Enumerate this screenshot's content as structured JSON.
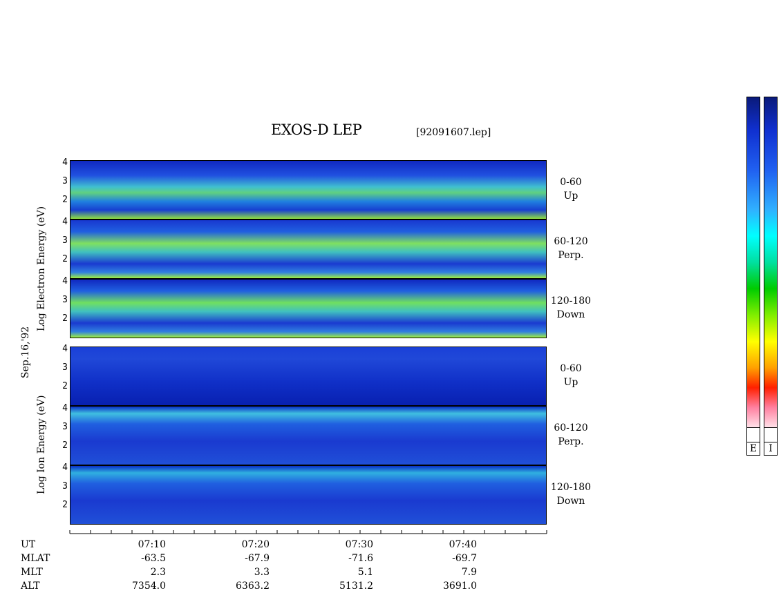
{
  "title": "EXOS-D LEP",
  "file": "[92091607.lep]",
  "ylabels": {
    "electron": "Log  Electron  Energy (eV)",
    "ion": "Log  Ion  Energy (eV)",
    "date": "Sep.16,'92"
  },
  "chart_data": {
    "type": "heatmap",
    "title": "EXOS-D LEP",
    "y_ticks": [
      "4",
      "3",
      "2"
    ],
    "panels": [
      {
        "species": "Electron",
        "pitch": "0-60",
        "dir": "Up"
      },
      {
        "species": "Electron",
        "pitch": "60-120",
        "dir": "Perp."
      },
      {
        "species": "Electron",
        "pitch": "120-180",
        "dir": "Down"
      },
      {
        "species": "Ion",
        "pitch": "0-60",
        "dir": "Up"
      },
      {
        "species": "Ion",
        "pitch": "60-120",
        "dir": "Perp."
      },
      {
        "species": "Ion",
        "pitch": "120-180",
        "dir": "Down"
      }
    ],
    "x_ticks": [
      "07:10",
      "07:20",
      "07:30",
      "07:40"
    ],
    "rows": [
      {
        "label": "UT",
        "values": [
          "07:10",
          "07:20",
          "07:30",
          "07:40"
        ]
      },
      {
        "label": "MLAT",
        "values": [
          "-63.5",
          "-67.9",
          "-71.6",
          "-69.7"
        ]
      },
      {
        "label": "MLT",
        "values": [
          "2.3",
          "3.3",
          "5.1",
          "7.9"
        ]
      },
      {
        "label": "ALT",
        "values": [
          "7354.0",
          "6363.2",
          "5131.2",
          "3691.0"
        ]
      }
    ],
    "colorbar_labels": [
      "E",
      "I"
    ]
  },
  "colors": {
    "background": "#0a2ad0",
    "accent": "#00ffff"
  }
}
